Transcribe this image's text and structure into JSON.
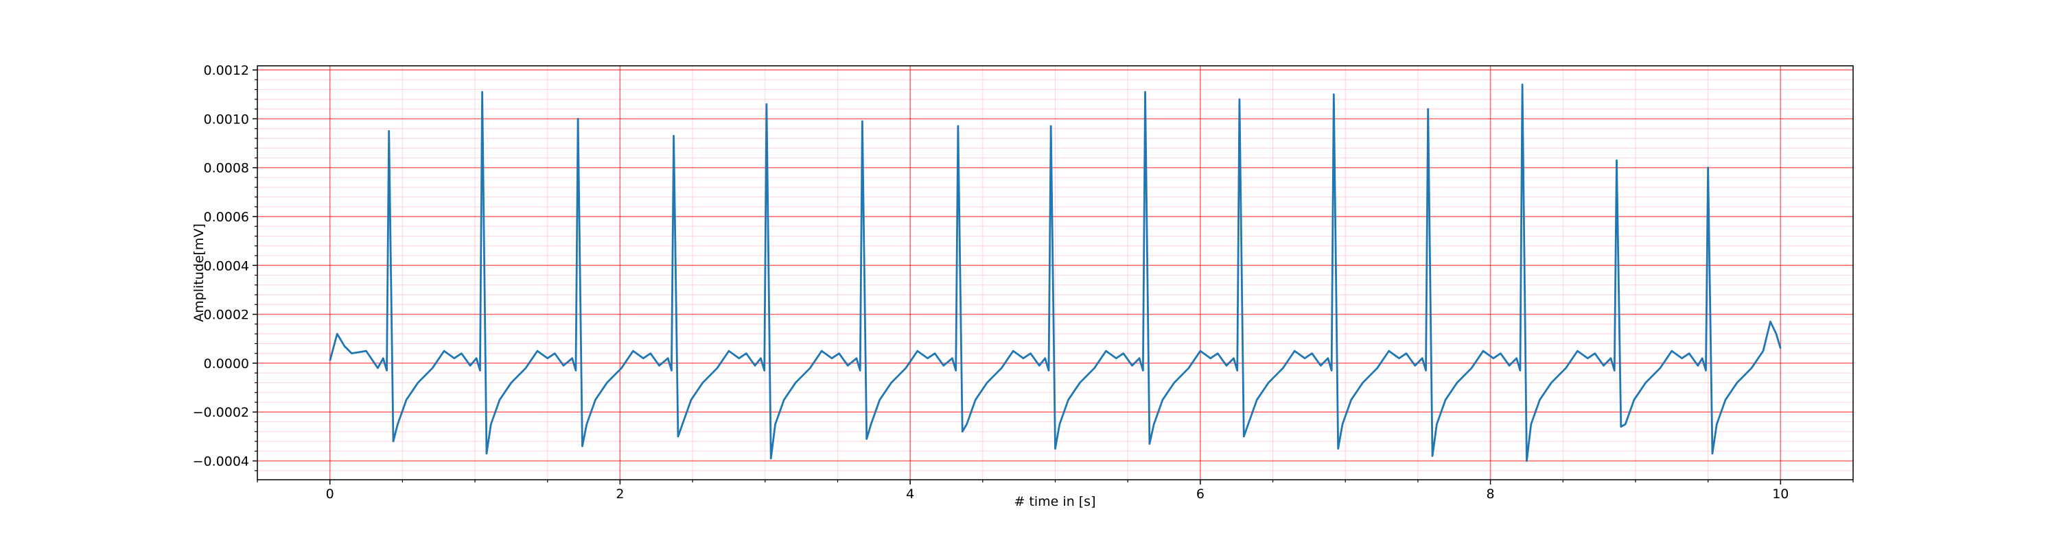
{
  "chart_data": {
    "type": "line",
    "xlabel": "# time in [s]",
    "ylabel": "Amplitude[mV]",
    "color": "#1f77b4",
    "grid": {
      "major_color": "#ff0000",
      "minor_color": "#ffc0cb"
    },
    "xlim": [
      -0.5,
      10.5
    ],
    "ylim": [
      -0.000477,
      0.001217
    ],
    "xticks": [
      0,
      2,
      4,
      6,
      8,
      10
    ],
    "yticks": [
      {
        "value": -0.0004,
        "label": "−0.0004"
      },
      {
        "value": -0.0002,
        "label": "−0.0002"
      },
      {
        "value": 0,
        "label": "0.0000"
      },
      {
        "value": 0.0002,
        "label": "0.0002"
      },
      {
        "value": 0.0004,
        "label": "0.0004"
      },
      {
        "value": 0.0006,
        "label": "0.0006"
      },
      {
        "value": 0.0008,
        "label": "0.0008"
      },
      {
        "value": 0.001,
        "label": "0.0010"
      },
      {
        "value": 0.0012,
        "label": "0.0012"
      }
    ],
    "xminor": [
      -0.5,
      0.5,
      1,
      1.5,
      2.5,
      3,
      3.5,
      4.5,
      5,
      5.5,
      6.5,
      7,
      7.5,
      8.5,
      9,
      9.5,
      10.5
    ],
    "yminor": [
      -0.00044,
      -0.00036,
      -0.00032,
      -0.00028,
      -0.00024,
      -0.00016,
      -0.00012,
      -8e-05,
      -4e-05,
      4e-05,
      8e-05,
      0.00012,
      0.00016,
      0.00024,
      0.00028,
      0.00032,
      0.00036,
      0.00044,
      0.00048,
      0.00052,
      0.00056,
      0.00064,
      0.00068,
      0.00072,
      0.00076,
      0.00084,
      0.00088,
      0.00092,
      0.00096,
      0.00104,
      0.00108,
      0.00112,
      0.00116
    ],
    "x": [
      0,
      0.05,
      0.1,
      0.15,
      0.25,
      0.33,
      0.367,
      0.392,
      0.407,
      0.437,
      0.467,
      0.527,
      0.607,
      0.707,
      0.787,
      0.857,
      0.907,
      0.967,
      1.01,
      1.035,
      1.05,
      1.08,
      1.11,
      1.17,
      1.25,
      1.35,
      1.43,
      1.5,
      1.55,
      1.61,
      1.67,
      1.695,
      1.71,
      1.74,
      1.77,
      1.83,
      1.91,
      2.01,
      2.09,
      2.16,
      2.21,
      2.27,
      2.33,
      2.355,
      2.37,
      2.4,
      2.43,
      2.49,
      2.57,
      2.67,
      2.75,
      2.82,
      2.87,
      2.93,
      2.97,
      2.995,
      3.01,
      3.04,
      3.07,
      3.13,
      3.21,
      3.31,
      3.39,
      3.46,
      3.51,
      3.57,
      3.63,
      3.655,
      3.67,
      3.7,
      3.73,
      3.79,
      3.87,
      3.97,
      4.05,
      4.12,
      4.17,
      4.23,
      4.29,
      4.315,
      4.33,
      4.36,
      4.39,
      4.45,
      4.53,
      4.63,
      4.71,
      4.78,
      4.83,
      4.89,
      4.93,
      4.955,
      4.97,
      5.0,
      5.03,
      5.09,
      5.17,
      5.27,
      5.35,
      5.42,
      5.47,
      5.53,
      5.58,
      5.605,
      5.62,
      5.65,
      5.68,
      5.74,
      5.82,
      5.92,
      6.0,
      6.07,
      6.12,
      6.18,
      6.23,
      6.255,
      6.27,
      6.3,
      6.33,
      6.39,
      6.47,
      6.57,
      6.65,
      6.72,
      6.77,
      6.83,
      6.88,
      6.905,
      6.92,
      6.95,
      6.98,
      7.04,
      7.12,
      7.22,
      7.3,
      7.37,
      7.42,
      7.48,
      7.53,
      7.555,
      7.57,
      7.6,
      7.63,
      7.69,
      7.77,
      7.87,
      7.95,
      8.02,
      8.07,
      8.13,
      8.18,
      8.205,
      8.22,
      8.25,
      8.28,
      8.34,
      8.42,
      8.52,
      8.6,
      8.67,
      8.72,
      8.78,
      8.83,
      8.855,
      8.87,
      8.9,
      8.93,
      8.99,
      9.07,
      9.17,
      9.25,
      9.32,
      9.37,
      9.43,
      9.46,
      9.485,
      9.5,
      9.53,
      9.56,
      9.62,
      9.7,
      9.8,
      9.88,
      9.93,
      9.97,
      10.0
    ],
    "values": [
      1e-05,
      0.00012,
      7e-05,
      4e-05,
      5e-05,
      -2e-05,
      2e-05,
      -3e-05,
      0.00095,
      -0.00032,
      -0.00025,
      -0.00015,
      -8e-05,
      -2e-05,
      5e-05,
      2e-05,
      4e-05,
      -1e-05,
      2e-05,
      -3e-05,
      0.00111,
      -0.00037,
      -0.00025,
      -0.00015,
      -8e-05,
      -2e-05,
      5e-05,
      2e-05,
      4e-05,
      -1e-05,
      2e-05,
      -3e-05,
      0.001,
      -0.00034,
      -0.00025,
      -0.00015,
      -8e-05,
      -2e-05,
      5e-05,
      2e-05,
      4e-05,
      -1e-05,
      2e-05,
      -3e-05,
      0.00093,
      -0.0003,
      -0.00025,
      -0.00015,
      -8e-05,
      -2e-05,
      5e-05,
      2e-05,
      4e-05,
      -1e-05,
      2e-05,
      -3e-05,
      0.00106,
      -0.00039,
      -0.00025,
      -0.00015,
      -8e-05,
      -2e-05,
      5e-05,
      2e-05,
      4e-05,
      -1e-05,
      2e-05,
      -3e-05,
      0.00099,
      -0.00031,
      -0.00025,
      -0.00015,
      -8e-05,
      -2e-05,
      5e-05,
      2e-05,
      4e-05,
      -1e-05,
      2e-05,
      -3e-05,
      0.00097,
      -0.00028,
      -0.00025,
      -0.00015,
      -8e-05,
      -2e-05,
      5e-05,
      2e-05,
      4e-05,
      -1e-05,
      2e-05,
      -3e-05,
      0.00097,
      -0.00035,
      -0.00025,
      -0.00015,
      -8e-05,
      -2e-05,
      5e-05,
      2e-05,
      4e-05,
      -1e-05,
      2e-05,
      -3e-05,
      0.00111,
      -0.00033,
      -0.00025,
      -0.00015,
      -8e-05,
      -2e-05,
      5e-05,
      2e-05,
      4e-05,
      -1e-05,
      2e-05,
      -3e-05,
      0.00108,
      -0.0003,
      -0.00025,
      -0.00015,
      -8e-05,
      -2e-05,
      5e-05,
      2e-05,
      4e-05,
      -1e-05,
      2e-05,
      -3e-05,
      0.0011,
      -0.00035,
      -0.00025,
      -0.00015,
      -8e-05,
      -2e-05,
      5e-05,
      2e-05,
      4e-05,
      -1e-05,
      2e-05,
      -3e-05,
      0.00104,
      -0.00038,
      -0.00025,
      -0.00015,
      -8e-05,
      -2e-05,
      5e-05,
      2e-05,
      4e-05,
      -1e-05,
      2e-05,
      -3e-05,
      0.00114,
      -0.0004,
      -0.00025,
      -0.00015,
      -8e-05,
      -2e-05,
      5e-05,
      2e-05,
      4e-05,
      -1e-05,
      2e-05,
      -3e-05,
      0.00083,
      -0.00026,
      -0.00025,
      -0.00015,
      -8e-05,
      -2e-05,
      5e-05,
      2e-05,
      4e-05,
      -1e-05,
      2e-05,
      -3e-05,
      0.0008,
      -0.00037,
      -0.00025,
      -0.00015,
      -8e-05,
      -2e-05,
      5e-05,
      0.00017,
      0.00012,
      6e-05
    ]
  }
}
